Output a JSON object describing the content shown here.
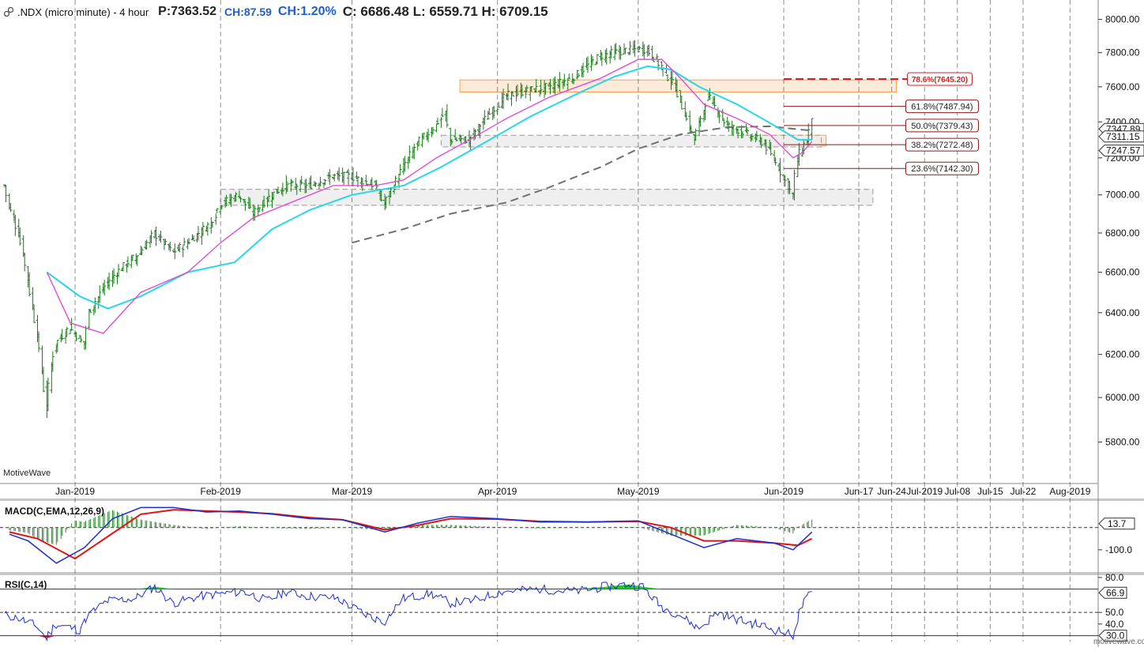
{
  "header": {
    "symbol": ".NDX (micro minute) - 4 hour",
    "price": "P:7363.52",
    "change": "CH:87.59",
    "change_pct": "CH:1.20%",
    "ohl": "C: 6686.48  L: 6559.71  H: 6709.15"
  },
  "watermark": "MotiveWave",
  "brand": "motivewave.com",
  "colors": {
    "candle": "#1a7a1a",
    "ema_fast": "#e43fd2",
    "ema_slow": "#27d6e8",
    "sma_long": "#707070",
    "fib_line": "#8b1a1a",
    "fib_786": "#d81e1e",
    "zone_orange": "#f5a050",
    "zone_gray": "#9a9a9a",
    "macd_line": "#1d2fd1",
    "signal_line": "#e01414",
    "histogram": "#2e8b2e",
    "rsi_line": "#1d2fd1",
    "rsi_overbought_fill": "#22cc22",
    "rsi_oversold_fill": "#e01414"
  },
  "chart_data": [
    {
      "type": "candlestick",
      "title": ".NDX (micro minute) - 4 hour",
      "x_labels": [
        "Jan-2019",
        "Feb-2019",
        "Mar-2019",
        "Apr-2019",
        "May-2019",
        "Jun-2019",
        "Jun-17",
        "Jun-24",
        "Jul-2019",
        "Jul-08",
        "Jul-15",
        "Jul-22",
        "Aug-2019"
      ],
      "x_label_dates": [
        "2019-01-01",
        "2019-02-01",
        "2019-03-01",
        "2019-04-01",
        "2019-05-01",
        "2019-06-01",
        "2019-06-17",
        "2019-06-24",
        "2019-07-01",
        "2019-07-08",
        "2019-07-15",
        "2019-07-22",
        "2019-08-01"
      ],
      "x_range": [
        "2018-12-16",
        "2019-08-07"
      ],
      "y_ticks": [
        5800,
        6000,
        6200,
        6400,
        6600,
        6800,
        7000,
        7200,
        7400,
        7600,
        7800,
        8000
      ],
      "y_tick_labels": [
        "5800.00",
        "6000.00",
        "6200.00",
        "6400.00",
        "6600.00",
        "6800.00",
        "7000.00",
        "7200.00",
        "7400.00",
        "7600.00",
        "7800.00",
        "8000.00"
      ],
      "ylim": [
        5620,
        8080
      ],
      "y_scale": "log",
      "gridlines": "vertical dashed at month starts",
      "price_path": [
        [
          "2018-12-17",
          7050
        ],
        [
          "2018-12-18",
          6950
        ],
        [
          "2018-12-20",
          6800
        ],
        [
          "2018-12-21",
          6700
        ],
        [
          "2018-12-24",
          6300
        ],
        [
          "2018-12-26",
          5950
        ],
        [
          "2018-12-27",
          6150
        ],
        [
          "2018-12-28",
          6250
        ],
        [
          "2018-12-31",
          6330
        ],
        [
          "2019-01-03",
          6250
        ],
        [
          "2019-01-04",
          6400
        ],
        [
          "2019-01-08",
          6550
        ],
        [
          "2019-01-11",
          6620
        ],
        [
          "2019-01-15",
          6700
        ],
        [
          "2019-01-18",
          6800
        ],
        [
          "2019-01-22",
          6700
        ],
        [
          "2019-01-25",
          6750
        ],
        [
          "2019-01-30",
          6850
        ],
        [
          "2019-02-01",
          6950
        ],
        [
          "2019-02-05",
          7000
        ],
        [
          "2019-02-08",
          6900
        ],
        [
          "2019-02-12",
          7000
        ],
        [
          "2019-02-15",
          7050
        ],
        [
          "2019-02-20",
          7050
        ],
        [
          "2019-02-25",
          7100
        ],
        [
          "2019-03-01",
          7100
        ],
        [
          "2019-03-06",
          7050
        ],
        [
          "2019-03-08",
          6950
        ],
        [
          "2019-03-12",
          7150
        ],
        [
          "2019-03-15",
          7280
        ],
        [
          "2019-03-18",
          7350
        ],
        [
          "2019-03-21",
          7450
        ],
        [
          "2019-03-22",
          7300
        ],
        [
          "2019-03-26",
          7300
        ],
        [
          "2019-03-29",
          7400
        ],
        [
          "2019-04-03",
          7550
        ],
        [
          "2019-04-08",
          7580
        ],
        [
          "2019-04-12",
          7600
        ],
        [
          "2019-04-17",
          7650
        ],
        [
          "2019-04-23",
          7780
        ],
        [
          "2019-04-26",
          7800
        ],
        [
          "2019-04-30",
          7820
        ],
        [
          "2019-05-03",
          7820
        ],
        [
          "2019-05-06",
          7720
        ],
        [
          "2019-05-09",
          7600
        ],
        [
          "2019-05-13",
          7300
        ],
        [
          "2019-05-16",
          7550
        ],
        [
          "2019-05-20",
          7380
        ],
        [
          "2019-05-23",
          7350
        ],
        [
          "2019-05-28",
          7280
        ],
        [
          "2019-05-31",
          7150
        ],
        [
          "2019-06-03",
          7000
        ],
        [
          "2019-06-04",
          7200
        ],
        [
          "2019-06-05",
          7250
        ],
        [
          "2019-06-06",
          7300
        ],
        [
          "2019-06-07",
          7400
        ]
      ],
      "price_axis_labels": [
        "7347.89",
        "7311.15",
        "7247.57"
      ],
      "ema_fast_path": [
        [
          "2018-12-26",
          6600
        ],
        [
          "2018-12-31",
          6350
        ],
        [
          "2019-01-07",
          6300
        ],
        [
          "2019-01-15",
          6500
        ],
        [
          "2019-01-25",
          6600
        ],
        [
          "2019-02-01",
          6750
        ],
        [
          "2019-02-08",
          6880
        ],
        [
          "2019-02-15",
          6950
        ],
        [
          "2019-02-25",
          7050
        ],
        [
          "2019-03-06",
          7050
        ],
        [
          "2019-03-12",
          7080
        ],
        [
          "2019-03-19",
          7200
        ],
        [
          "2019-03-26",
          7300
        ],
        [
          "2019-04-03",
          7420
        ],
        [
          "2019-04-12",
          7540
        ],
        [
          "2019-04-23",
          7650
        ],
        [
          "2019-05-01",
          7760
        ],
        [
          "2019-05-06",
          7760
        ],
        [
          "2019-05-10",
          7650
        ],
        [
          "2019-05-15",
          7500
        ],
        [
          "2019-05-22",
          7420
        ],
        [
          "2019-05-29",
          7330
        ],
        [
          "2019-06-03",
          7200
        ],
        [
          "2019-06-05",
          7230
        ],
        [
          "2019-06-07",
          7290
        ]
      ],
      "ema_slow_path": [
        [
          "2018-12-26",
          6600
        ],
        [
          "2019-01-02",
          6480
        ],
        [
          "2019-01-08",
          6420
        ],
        [
          "2019-01-15",
          6480
        ],
        [
          "2019-01-25",
          6600
        ],
        [
          "2019-02-04",
          6650
        ],
        [
          "2019-02-12",
          6820
        ],
        [
          "2019-02-20",
          6920
        ],
        [
          "2019-03-01",
          7000
        ],
        [
          "2019-03-12",
          7050
        ],
        [
          "2019-03-20",
          7150
        ],
        [
          "2019-03-29",
          7280
        ],
        [
          "2019-04-08",
          7430
        ],
        [
          "2019-04-18",
          7560
        ],
        [
          "2019-04-26",
          7660
        ],
        [
          "2019-05-03",
          7720
        ],
        [
          "2019-05-08",
          7700
        ],
        [
          "2019-05-14",
          7600
        ],
        [
          "2019-05-22",
          7500
        ],
        [
          "2019-05-30",
          7380
        ],
        [
          "2019-06-04",
          7300
        ],
        [
          "2019-06-07",
          7300
        ]
      ],
      "sma_long_path": [
        [
          "2019-03-01",
          6750
        ],
        [
          "2019-03-12",
          6820
        ],
        [
          "2019-03-22",
          6900
        ],
        [
          "2019-04-03",
          6960
        ],
        [
          "2019-04-12",
          7040
        ],
        [
          "2019-04-23",
          7150
        ],
        [
          "2019-05-01",
          7250
        ],
        [
          "2019-05-10",
          7330
        ],
        [
          "2019-05-20",
          7370
        ],
        [
          "2019-05-29",
          7375
        ],
        [
          "2019-06-07",
          7350
        ]
      ],
      "zones": [
        {
          "kind": "orange",
          "x0": "2019-03-24",
          "x1": "2019-06-25",
          "y0": 7570,
          "y1": 7640
        },
        {
          "kind": "orange",
          "x0": "2019-05-27",
          "x1": "2019-06-10",
          "y0": 7265,
          "y1": 7325
        },
        {
          "kind": "gray",
          "x0": "2019-03-20",
          "x1": "2019-06-09",
          "y0": 7260,
          "y1": 7325
        },
        {
          "kind": "gray",
          "x0": "2019-02-01",
          "x1": "2019-06-20",
          "y0": 6945,
          "y1": 7030
        }
      ],
      "fib_levels": [
        {
          "label": "78.6%(7645.20)",
          "value": 7645.2
        },
        {
          "label": "61.8%(7487.94)",
          "value": 7487.94
        },
        {
          "label": "50.0%(7379.43)",
          "value": 7379.43
        },
        {
          "label": "38.2%(7272.48)",
          "value": 7272.48
        },
        {
          "label": "23.6%(7142.30)",
          "value": 7142.3
        }
      ],
      "fib_start": "2019-06-01",
      "fib_label_date": "2019-06-27"
    },
    {
      "type": "line",
      "title": "MACD(C,EMA,12,26,9)",
      "y_ticks": [
        -100
      ],
      "y_tick_labels": [
        "-100.0"
      ],
      "current_value_label": "13.7",
      "ylim": [
        -200,
        120
      ],
      "series": [
        {
          "name": "MACD",
          "values_path": [
            [
              "2018-12-18",
              -30
            ],
            [
              "2018-12-22",
              -60
            ],
            [
              "2018-12-28",
              -160
            ],
            [
              "2019-01-03",
              -90
            ],
            [
              "2019-01-09",
              40
            ],
            [
              "2019-01-15",
              90
            ],
            [
              "2019-01-22",
              90
            ],
            [
              "2019-01-29",
              70
            ],
            [
              "2019-02-05",
              75
            ],
            [
              "2019-02-12",
              60
            ],
            [
              "2019-02-20",
              40
            ],
            [
              "2019-02-27",
              35
            ],
            [
              "2019-03-08",
              -20
            ],
            [
              "2019-03-15",
              20
            ],
            [
              "2019-03-22",
              50
            ],
            [
              "2019-04-01",
              40
            ],
            [
              "2019-04-10",
              25
            ],
            [
              "2019-04-20",
              25
            ],
            [
              "2019-05-01",
              30
            ],
            [
              "2019-05-08",
              -30
            ],
            [
              "2019-05-15",
              -90
            ],
            [
              "2019-05-22",
              -50
            ],
            [
              "2019-05-30",
              -70
            ],
            [
              "2019-06-03",
              -100
            ],
            [
              "2019-06-07",
              -20
            ]
          ]
        },
        {
          "name": "Signal",
          "values_path": [
            [
              "2018-12-18",
              -20
            ],
            [
              "2018-12-24",
              -50
            ],
            [
              "2019-01-01",
              -140
            ],
            [
              "2019-01-08",
              -40
            ],
            [
              "2019-01-15",
              60
            ],
            [
              "2019-01-22",
              80
            ],
            [
              "2019-01-29",
              75
            ],
            [
              "2019-02-05",
              70
            ],
            [
              "2019-02-12",
              62
            ],
            [
              "2019-02-20",
              45
            ],
            [
              "2019-02-27",
              35
            ],
            [
              "2019-03-08",
              -10
            ],
            [
              "2019-03-15",
              10
            ],
            [
              "2019-03-22",
              40
            ],
            [
              "2019-04-01",
              38
            ],
            [
              "2019-04-10",
              28
            ],
            [
              "2019-04-20",
              25
            ],
            [
              "2019-05-01",
              28
            ],
            [
              "2019-05-08",
              0
            ],
            [
              "2019-05-15",
              -60
            ],
            [
              "2019-05-22",
              -60
            ],
            [
              "2019-05-30",
              -70
            ],
            [
              "2019-06-04",
              -80
            ],
            [
              "2019-06-07",
              -50
            ]
          ]
        }
      ]
    },
    {
      "type": "line",
      "title": "RSI(C,14)",
      "y_ticks": [
        80,
        50,
        40
      ],
      "y_tick_labels": [
        "80.0",
        "50.0",
        "40.0"
      ],
      "level_labels": [
        "66.9",
        "30.0"
      ],
      "levels": [
        70,
        50,
        30
      ],
      "ylim": [
        25,
        82
      ],
      "series": [
        {
          "name": "RSI",
          "values_path": [
            [
              "2018-12-17",
              48
            ],
            [
              "2018-12-20",
              45
            ],
            [
              "2018-12-24",
              38
            ],
            [
              "2018-12-26",
              28
            ],
            [
              "2018-12-28",
              40
            ],
            [
              "2019-01-02",
              35
            ],
            [
              "2019-01-04",
              48
            ],
            [
              "2019-01-08",
              60
            ],
            [
              "2019-01-14",
              62
            ],
            [
              "2019-01-18",
              72
            ],
            [
              "2019-01-22",
              58
            ],
            [
              "2019-01-28",
              64
            ],
            [
              "2019-02-01",
              66
            ],
            [
              "2019-02-06",
              68
            ],
            [
              "2019-02-11",
              60
            ],
            [
              "2019-02-15",
              68
            ],
            [
              "2019-02-20",
              64
            ],
            [
              "2019-02-26",
              62
            ],
            [
              "2019-03-04",
              48
            ],
            [
              "2019-03-08",
              42
            ],
            [
              "2019-03-12",
              62
            ],
            [
              "2019-03-18",
              66
            ],
            [
              "2019-03-22",
              58
            ],
            [
              "2019-03-27",
              60
            ],
            [
              "2019-04-02",
              68
            ],
            [
              "2019-04-10",
              70
            ],
            [
              "2019-04-18",
              68
            ],
            [
              "2019-04-24",
              72
            ],
            [
              "2019-04-29",
              74
            ],
            [
              "2019-05-02",
              72
            ],
            [
              "2019-05-06",
              55
            ],
            [
              "2019-05-10",
              48
            ],
            [
              "2019-05-14",
              36
            ],
            [
              "2019-05-18",
              50
            ],
            [
              "2019-05-22",
              44
            ],
            [
              "2019-05-28",
              38
            ],
            [
              "2019-06-01",
              33
            ],
            [
              "2019-06-03",
              30
            ],
            [
              "2019-06-05",
              56
            ],
            [
              "2019-06-07",
              67
            ]
          ]
        }
      ]
    }
  ]
}
